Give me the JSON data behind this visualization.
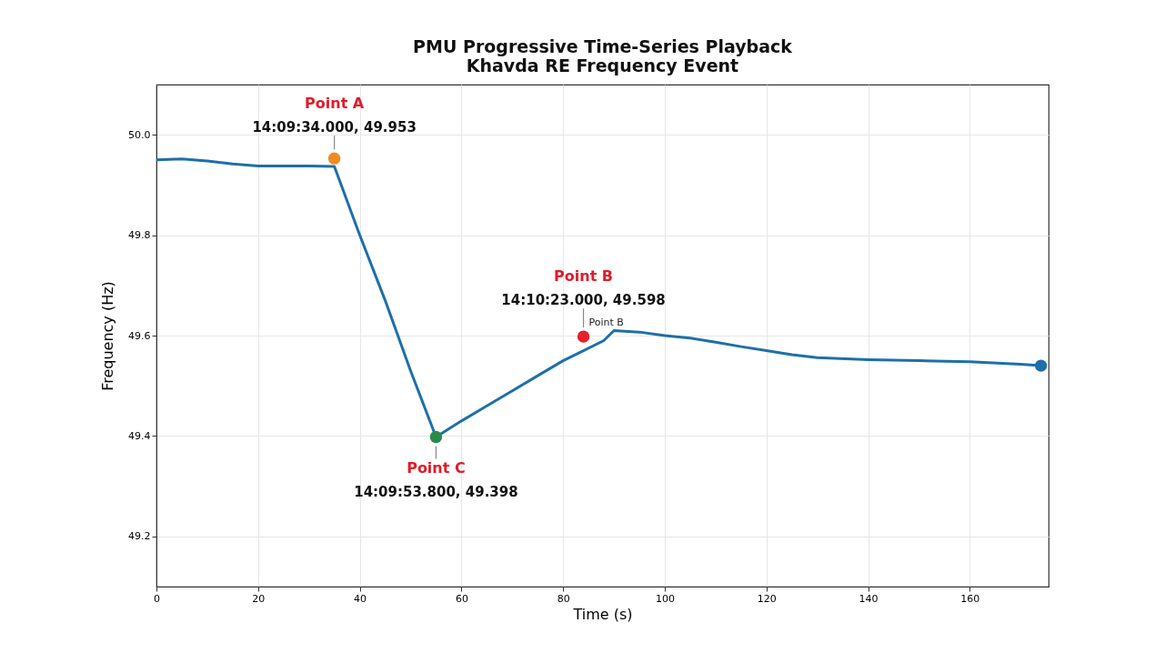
{
  "chart_data": {
    "type": "line",
    "title": "PMU Progressive Time-Series Playback",
    "subtitle": "Khavda RE Frequency Event",
    "xlabel": "Time (s)",
    "ylabel": "Frequency (Hz)",
    "xlim": [
      0,
      175.5
    ],
    "xticks": [
      0,
      20,
      40,
      60,
      80,
      100,
      120,
      140,
      160
    ],
    "ylim": [
      49.1,
      50.1
    ],
    "yticks": [
      49.2,
      49.4,
      49.6,
      49.8,
      {
        "value": 50,
        "label": "50.0"
      }
    ],
    "grid": true,
    "legend": false,
    "marker": "none",
    "line_style": "solid",
    "series": [
      {
        "color": "#1f6fa8",
        "x": [
          0,
          5,
          10,
          15,
          20,
          25,
          30,
          35,
          40,
          45,
          50,
          55,
          60,
          65,
          70,
          75,
          80,
          84,
          88,
          90,
          95,
          100,
          105,
          110,
          115,
          120,
          125,
          130,
          140,
          150,
          160,
          170,
          174
        ],
        "values": [
          49.95,
          49.952,
          49.948,
          49.942,
          49.938,
          49.938,
          49.938,
          49.937,
          49.8,
          49.67,
          49.53,
          49.398,
          49.43,
          49.46,
          49.49,
          49.52,
          49.55,
          49.57,
          49.59,
          49.61,
          49.607,
          49.6,
          49.595,
          49.587,
          49.578,
          49.57,
          49.562,
          49.556,
          49.552,
          49.55,
          49.548,
          49.543,
          49.54
        ]
      },
      {
        "type": "scatter",
        "marker": "circle",
        "x": [
          35,
          55,
          84,
          174
        ],
        "values": [
          49.953,
          49.398,
          49.598,
          49.54
        ],
        "colors": [
          "#f08a24",
          "#2a8a4a",
          "#e8202a",
          "#1f6fa8"
        ]
      }
    ],
    "annotations": [
      "Point A",
      {
        "text": "14:09:34.000, 49.953",
        "x": 35,
        "y": 49.953
      },
      {
        "text": "Point B",
        "x": 84,
        "y": 49.598
      },
      "Point B",
      {
        "text": "14:10:23.000, 49.598",
        "x": 84,
        "y": 49.598
      },
      {
        "text": "Point C",
        "x": 55,
        "y": 49.398
      },
      "14:09:53.800, 49.398"
    ]
  }
}
